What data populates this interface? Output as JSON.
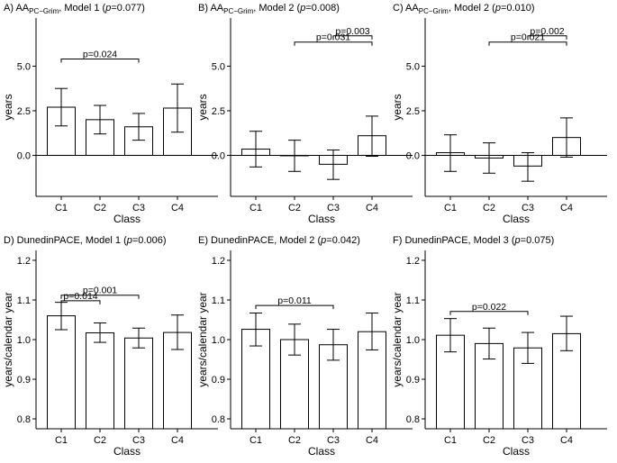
{
  "chart_data": [
    {
      "type": "bar",
      "panel": "A)",
      "title": {
        "pre": "A) AA",
        "sub": "PC−Grim",
        "post": ", Model 1 (",
        "pvar": "p",
        "pval": "=0.077)"
      },
      "categories": [
        "C1",
        "C2",
        "C3",
        "C4"
      ],
      "values": [
        2.7,
        2.0,
        1.6,
        2.65
      ],
      "ci_low": [
        1.65,
        1.2,
        0.85,
        1.3
      ],
      "ci_high": [
        3.75,
        2.8,
        2.35,
        4.0
      ],
      "xlabel": "Class",
      "ylabel": "years",
      "ylim": [
        -2.3,
        7.7
      ],
      "yticks": [
        0.0,
        2.5,
        5.0
      ],
      "ytick_labels": [
        "0.0",
        "2.5",
        "5.0"
      ],
      "baseline_line": 0,
      "comparisons": [
        {
          "from": "C1",
          "to": "C3",
          "label": "p=0.024",
          "y": 5.4
        }
      ]
    },
    {
      "type": "bar",
      "panel": "B)",
      "title": {
        "pre": "B) AA",
        "sub": "PC−Grim",
        "post": ", Model 2 (",
        "pvar": "p",
        "pval": "=0.008)"
      },
      "categories": [
        "C1",
        "C2",
        "C3",
        "C4"
      ],
      "values": [
        0.35,
        0.0,
        -0.5,
        1.1
      ],
      "ci_low": [
        -0.65,
        -0.9,
        -1.35,
        -0.05
      ],
      "ci_high": [
        1.35,
        0.85,
        0.3,
        2.2
      ],
      "xlabel": "Class",
      "ylabel": "years",
      "ylim": [
        -2.3,
        7.7
      ],
      "yticks": [
        0.0,
        2.5,
        5.0
      ],
      "ytick_labels": [
        "0.0",
        "2.5",
        "5.0"
      ],
      "baseline_line": 0,
      "comparisons": [
        {
          "from": "C3",
          "to": "C4",
          "label": "p=0.003",
          "y": 6.7
        },
        {
          "from": "C2",
          "to": "C4",
          "label": "p=0.031",
          "y": 6.35
        }
      ]
    },
    {
      "type": "bar",
      "panel": "C)",
      "title": {
        "pre": "C) AA",
        "sub": "PC−Grim",
        "post": ", Model 2 (",
        "pvar": "p",
        "pval": "=0.010)"
      },
      "categories": [
        "C1",
        "C2",
        "C3",
        "C4"
      ],
      "values": [
        0.15,
        -0.15,
        -0.6,
        1.0
      ],
      "ci_low": [
        -0.9,
        -1.0,
        -1.45,
        -0.1
      ],
      "ci_high": [
        1.15,
        0.7,
        0.15,
        2.1
      ],
      "xlabel": "Class",
      "ylabel": "years",
      "ylim": [
        -2.3,
        7.7
      ],
      "yticks": [
        0.0,
        2.5,
        5.0
      ],
      "ytick_labels": [
        "0.0",
        "2.5",
        "5.0"
      ],
      "baseline_line": 0,
      "comparisons": [
        {
          "from": "C3",
          "to": "C4",
          "label": "p=0.002",
          "y": 6.7
        },
        {
          "from": "C2",
          "to": "C4",
          "label": "p=0.021",
          "y": 6.35
        }
      ]
    },
    {
      "type": "bar",
      "panel": "D)",
      "title": {
        "pre": "D) DunedinPACE, Model 1 (",
        "sub": "",
        "post": "",
        "pvar": "p",
        "pval": "=0.006)"
      },
      "categories": [
        "C1",
        "C2",
        "C3",
        "C4"
      ],
      "values": [
        1.06,
        1.017,
        1.004,
        1.018
      ],
      "ci_low": [
        1.025,
        0.993,
        0.979,
        0.975
      ],
      "ci_high": [
        1.094,
        1.042,
        1.029,
        1.062
      ],
      "xlabel": "Class",
      "ylabel": "years/calendar year",
      "ylim": [
        0.775,
        1.225
      ],
      "yticks": [
        0.8,
        0.9,
        1.0,
        1.1,
        1.2
      ],
      "ytick_labels": [
        "0.8",
        "0.9",
        "1.0",
        "1.1",
        "1.2"
      ],
      "baseline_line": null,
      "comparisons": [
        {
          "from": "C1",
          "to": "C3",
          "label": "p=0.001",
          "y": 1.112
        },
        {
          "from": "C1",
          "to": "C2",
          "label": "p=0.014",
          "y": 1.098
        }
      ]
    },
    {
      "type": "bar",
      "panel": "E)",
      "title": {
        "pre": "E) DunedinPACE, Model 2 (",
        "sub": "",
        "post": "",
        "pvar": "p",
        "pval": "=0.042)"
      },
      "categories": [
        "C1",
        "C2",
        "C3",
        "C4"
      ],
      "values": [
        1.026,
        1.0,
        0.987,
        1.02
      ],
      "ci_low": [
        0.984,
        0.961,
        0.948,
        0.974
      ],
      "ci_high": [
        1.067,
        1.039,
        1.026,
        1.067
      ],
      "xlabel": "Class",
      "ylabel": "years/calendar year",
      "ylim": [
        0.775,
        1.225
      ],
      "yticks": [
        0.8,
        0.9,
        1.0,
        1.1,
        1.2
      ],
      "ytick_labels": [
        "0.8",
        "0.9",
        "1.0",
        "1.1",
        "1.2"
      ],
      "baseline_line": null,
      "comparisons": [
        {
          "from": "C1",
          "to": "C3",
          "label": "p=0.011",
          "y": 1.086
        }
      ]
    },
    {
      "type": "bar",
      "panel": "F)",
      "title": {
        "pre": "F) DunedinPACE, Model 3 (",
        "sub": "",
        "post": "",
        "pvar": "p",
        "pval": "=0.075)"
      },
      "categories": [
        "C1",
        "C2",
        "C3",
        "C4"
      ],
      "values": [
        1.011,
        0.99,
        0.979,
        1.015
      ],
      "ci_low": [
        0.969,
        0.951,
        0.94,
        0.972
      ],
      "ci_high": [
        1.053,
        1.029,
        1.018,
        1.059
      ],
      "xlabel": "Class",
      "ylabel": "years/calendar year",
      "ylim": [
        0.775,
        1.225
      ],
      "yticks": [
        0.8,
        0.9,
        1.0,
        1.1,
        1.2
      ],
      "ytick_labels": [
        "0.8",
        "0.9",
        "1.0",
        "1.1",
        "1.2"
      ],
      "baseline_line": null,
      "comparisons": [
        {
          "from": "C1",
          "to": "C3",
          "label": "p=0.022",
          "y": 1.071
        }
      ]
    }
  ]
}
